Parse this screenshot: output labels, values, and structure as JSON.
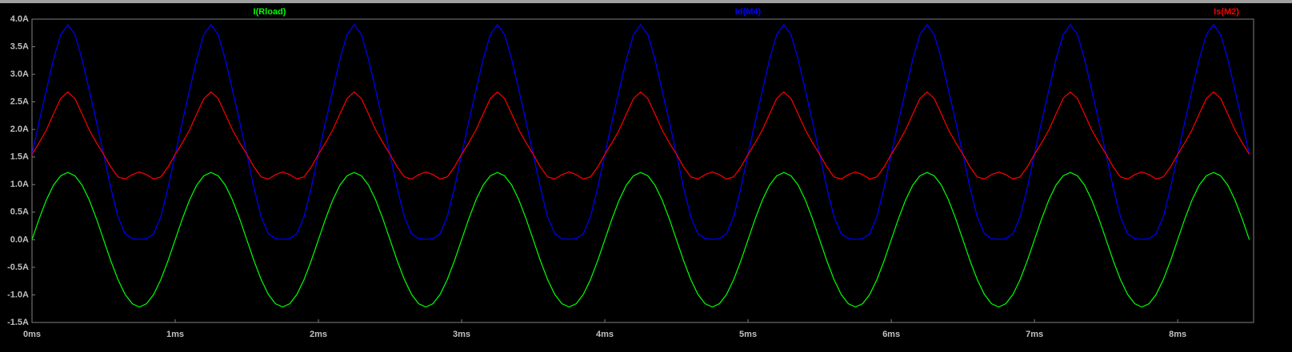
{
  "chart_data": {
    "type": "line",
    "x": [
      0,
      0.05,
      0.1,
      0.15,
      0.2,
      0.25,
      0.3,
      0.35,
      0.4,
      0.45,
      0.5,
      0.55,
      0.6,
      0.65,
      0.7,
      0.75,
      0.8,
      0.85,
      0.9,
      0.95,
      1,
      1.05,
      1.1,
      1.15,
      1.2,
      1.25,
      1.3,
      1.35,
      1.4,
      1.45,
      1.5,
      1.55,
      1.6,
      1.65,
      1.7,
      1.75,
      1.8,
      1.85,
      1.9,
      1.95,
      2,
      2.05,
      2.1,
      2.15,
      2.2,
      2.25,
      2.3,
      2.35,
      2.4,
      2.45,
      2.5,
      2.55,
      2.6,
      2.65,
      2.7,
      2.75,
      2.8,
      2.85,
      2.9,
      2.95,
      3,
      3.05,
      3.1,
      3.15,
      3.2,
      3.25,
      3.3,
      3.35,
      3.4,
      3.45,
      3.5,
      3.55,
      3.6,
      3.65,
      3.7,
      3.75,
      3.8,
      3.85,
      3.9,
      3.95,
      4,
      4.05,
      4.1,
      4.15,
      4.2,
      4.25,
      4.3,
      4.35,
      4.4,
      4.45,
      4.5,
      4.55,
      4.6,
      4.65,
      4.7,
      4.75,
      4.8,
      4.85,
      4.9,
      4.95,
      5,
      5.05,
      5.1,
      5.15,
      5.2,
      5.25,
      5.3,
      5.35,
      5.4,
      5.45,
      5.5,
      5.55,
      5.6,
      5.65,
      5.7,
      5.75,
      5.8,
      5.85,
      5.9,
      5.95,
      6,
      6.05,
      6.1,
      6.15,
      6.2,
      6.25,
      6.3,
      6.35,
      6.4,
      6.45,
      6.5,
      6.55,
      6.6,
      6.65,
      6.7,
      6.75,
      6.8,
      6.85,
      6.9,
      6.95,
      7,
      7.05,
      7.1,
      7.15,
      7.2,
      7.25,
      7.3,
      7.35,
      7.4,
      7.45,
      7.5,
      7.55,
      7.6,
      7.65,
      7.7,
      7.75,
      7.8,
      7.85,
      7.9,
      7.95,
      8,
      8.05,
      8.1,
      8.15,
      8.2,
      8.25,
      8.3,
      8.35,
      8.4,
      8.45,
      8.5
    ],
    "series": [
      {
        "name": "I(Rload)",
        "color": "#00ff00",
        "values": [
          0,
          0.38,
          0.72,
          0.99,
          1.16,
          1.22,
          1.16,
          0.99,
          0.72,
          0.38,
          0,
          -0.38,
          -0.72,
          -0.99,
          -1.16,
          -1.22,
          -1.16,
          -0.99,
          -0.72,
          -0.38,
          0,
          0.38,
          0.72,
          0.99,
          1.16,
          1.22,
          1.16,
          0.99,
          0.72,
          0.38,
          0,
          -0.38,
          -0.72,
          -0.99,
          -1.16,
          -1.22,
          -1.16,
          -0.99,
          -0.72,
          -0.38,
          0,
          0.38,
          0.72,
          0.99,
          1.16,
          1.22,
          1.16,
          0.99,
          0.72,
          0.38,
          0,
          -0.38,
          -0.72,
          -0.99,
          -1.16,
          -1.22,
          -1.16,
          -0.99,
          -0.72,
          -0.38,
          0,
          0.38,
          0.72,
          0.99,
          1.16,
          1.22,
          1.16,
          0.99,
          0.72,
          0.38,
          0,
          -0.38,
          -0.72,
          -0.99,
          -1.16,
          -1.22,
          -1.16,
          -0.99,
          -0.72,
          -0.38,
          0,
          0.38,
          0.72,
          0.99,
          1.16,
          1.22,
          1.16,
          0.99,
          0.72,
          0.38,
          0,
          -0.38,
          -0.72,
          -0.99,
          -1.16,
          -1.22,
          -1.16,
          -0.99,
          -0.72,
          -0.38,
          0,
          0.38,
          0.72,
          0.99,
          1.16,
          1.22,
          1.16,
          0.99,
          0.72,
          0.38,
          0,
          -0.38,
          -0.72,
          -0.99,
          -1.16,
          -1.22,
          -1.16,
          -0.99,
          -0.72,
          -0.38,
          0,
          0.38,
          0.72,
          0.99,
          1.16,
          1.22,
          1.16,
          0.99,
          0.72,
          0.38,
          0,
          -0.38,
          -0.72,
          -0.99,
          -1.16,
          -1.22,
          -1.16,
          -0.99,
          -0.72,
          -0.38,
          0,
          0.38,
          0.72,
          0.99,
          1.16,
          1.22,
          1.16,
          0.99,
          0.72,
          0.38,
          0,
          -0.38,
          -0.72,
          -0.99,
          -1.16,
          -1.22,
          -1.16,
          -0.99,
          -0.72,
          -0.38,
          0,
          0.38,
          0.72,
          0.99,
          1.16,
          1.22,
          1.16,
          0.99,
          0.72,
          0.38,
          0
        ]
      },
      {
        "name": "Id(M4)",
        "color": "#0000ff",
        "values": [
          1.55,
          2.14,
          2.71,
          3.27,
          3.72,
          3.9,
          3.72,
          3.27,
          2.71,
          2.14,
          1.55,
          0.94,
          0.42,
          0.11,
          0.02,
          0.01,
          0.02,
          0.11,
          0.42,
          0.94,
          1.55,
          2.14,
          2.71,
          3.27,
          3.72,
          3.9,
          3.72,
          3.27,
          2.71,
          2.14,
          1.55,
          0.94,
          0.42,
          0.11,
          0.02,
          0.01,
          0.02,
          0.11,
          0.42,
          0.94,
          1.55,
          2.14,
          2.71,
          3.27,
          3.72,
          3.9,
          3.72,
          3.27,
          2.71,
          2.14,
          1.55,
          0.94,
          0.42,
          0.11,
          0.02,
          0.01,
          0.02,
          0.11,
          0.42,
          0.94,
          1.55,
          2.14,
          2.71,
          3.27,
          3.72,
          3.9,
          3.72,
          3.27,
          2.71,
          2.14,
          1.55,
          0.94,
          0.42,
          0.11,
          0.02,
          0.01,
          0.02,
          0.11,
          0.42,
          0.94,
          1.55,
          2.14,
          2.71,
          3.27,
          3.72,
          3.9,
          3.72,
          3.27,
          2.71,
          2.14,
          1.55,
          0.94,
          0.42,
          0.11,
          0.02,
          0.01,
          0.02,
          0.11,
          0.42,
          0.94,
          1.55,
          2.14,
          2.71,
          3.27,
          3.72,
          3.9,
          3.72,
          3.27,
          2.71,
          2.14,
          1.55,
          0.94,
          0.42,
          0.11,
          0.02,
          0.01,
          0.02,
          0.11,
          0.42,
          0.94,
          1.55,
          2.14,
          2.71,
          3.27,
          3.72,
          3.9,
          3.72,
          3.27,
          2.71,
          2.14,
          1.55,
          0.94,
          0.42,
          0.11,
          0.02,
          0.01,
          0.02,
          0.11,
          0.42,
          0.94,
          1.55,
          2.14,
          2.71,
          3.27,
          3.72,
          3.9,
          3.72,
          3.27,
          2.71,
          2.14,
          1.55,
          0.94,
          0.42,
          0.11,
          0.02,
          0.01,
          0.02,
          0.11,
          0.42,
          0.94,
          1.55,
          2.14,
          2.71,
          3.27,
          3.72,
          3.9,
          3.72,
          3.27,
          2.71,
          2.14,
          1.55
        ]
      },
      {
        "name": "Is(M2)",
        "color": "#ff0000",
        "values": [
          1.55,
          1.76,
          1.99,
          2.28,
          2.56,
          2.68,
          2.56,
          2.28,
          1.99,
          1.76,
          1.55,
          1.32,
          1.14,
          1.1,
          1.18,
          1.23,
          1.18,
          1.1,
          1.14,
          1.32,
          1.55,
          1.76,
          1.99,
          2.28,
          2.56,
          2.68,
          2.56,
          2.28,
          1.99,
          1.76,
          1.55,
          1.32,
          1.14,
          1.1,
          1.18,
          1.23,
          1.18,
          1.1,
          1.14,
          1.32,
          1.55,
          1.76,
          1.99,
          2.28,
          2.56,
          2.68,
          2.56,
          2.28,
          1.99,
          1.76,
          1.55,
          1.32,
          1.14,
          1.1,
          1.18,
          1.23,
          1.18,
          1.1,
          1.14,
          1.32,
          1.55,
          1.76,
          1.99,
          2.28,
          2.56,
          2.68,
          2.56,
          2.28,
          1.99,
          1.76,
          1.55,
          1.32,
          1.14,
          1.1,
          1.18,
          1.23,
          1.18,
          1.1,
          1.14,
          1.32,
          1.55,
          1.76,
          1.99,
          2.28,
          2.56,
          2.68,
          2.56,
          2.28,
          1.99,
          1.76,
          1.55,
          1.32,
          1.14,
          1.1,
          1.18,
          1.23,
          1.18,
          1.1,
          1.14,
          1.32,
          1.55,
          1.76,
          1.99,
          2.28,
          2.56,
          2.68,
          2.56,
          2.28,
          1.99,
          1.76,
          1.55,
          1.32,
          1.14,
          1.1,
          1.18,
          1.23,
          1.18,
          1.1,
          1.14,
          1.32,
          1.55,
          1.76,
          1.99,
          2.28,
          2.56,
          2.68,
          2.56,
          2.28,
          1.99,
          1.76,
          1.55,
          1.32,
          1.14,
          1.1,
          1.18,
          1.23,
          1.18,
          1.1,
          1.14,
          1.32,
          1.55,
          1.76,
          1.99,
          2.28,
          2.56,
          2.68,
          2.56,
          2.28,
          1.99,
          1.76,
          1.55,
          1.32,
          1.14,
          1.1,
          1.18,
          1.23,
          1.18,
          1.1,
          1.14,
          1.32,
          1.55,
          1.76,
          1.99,
          2.28,
          2.56,
          2.68,
          2.56,
          2.28,
          1.99,
          1.76,
          1.55
        ]
      }
    ],
    "xlim": [
      0,
      8.53
    ],
    "xticks": [
      {
        "value": 0,
        "label": "0ms"
      },
      {
        "value": 1,
        "label": "1ms"
      },
      {
        "value": 2,
        "label": "2ms"
      },
      {
        "value": 3,
        "label": "3ms"
      },
      {
        "value": 4,
        "label": "4ms"
      },
      {
        "value": 5,
        "label": "5ms"
      },
      {
        "value": 6,
        "label": "6ms"
      },
      {
        "value": 7,
        "label": "7ms"
      },
      {
        "value": 8,
        "label": "8ms"
      }
    ],
    "ylim": [
      -1.5,
      4.0
    ],
    "yticks": [
      {
        "value": -1.5,
        "label": "-1.5A"
      },
      {
        "value": -1,
        "label": "-1.0A"
      },
      {
        "value": -0.5,
        "label": "-0.5A"
      },
      {
        "value": 0,
        "label": "0.0A"
      },
      {
        "value": 0.5,
        "label": "0.5A"
      },
      {
        "value": 1,
        "label": "1.0A"
      },
      {
        "value": 1.5,
        "label": "1.5A"
      },
      {
        "value": 2,
        "label": "2.0A"
      },
      {
        "value": 2.5,
        "label": "2.5A"
      },
      {
        "value": 3,
        "label": "3.0A"
      },
      {
        "value": 3.5,
        "label": "3.5A"
      },
      {
        "value": 4,
        "label": "4.0A"
      }
    ],
    "grid": false
  }
}
